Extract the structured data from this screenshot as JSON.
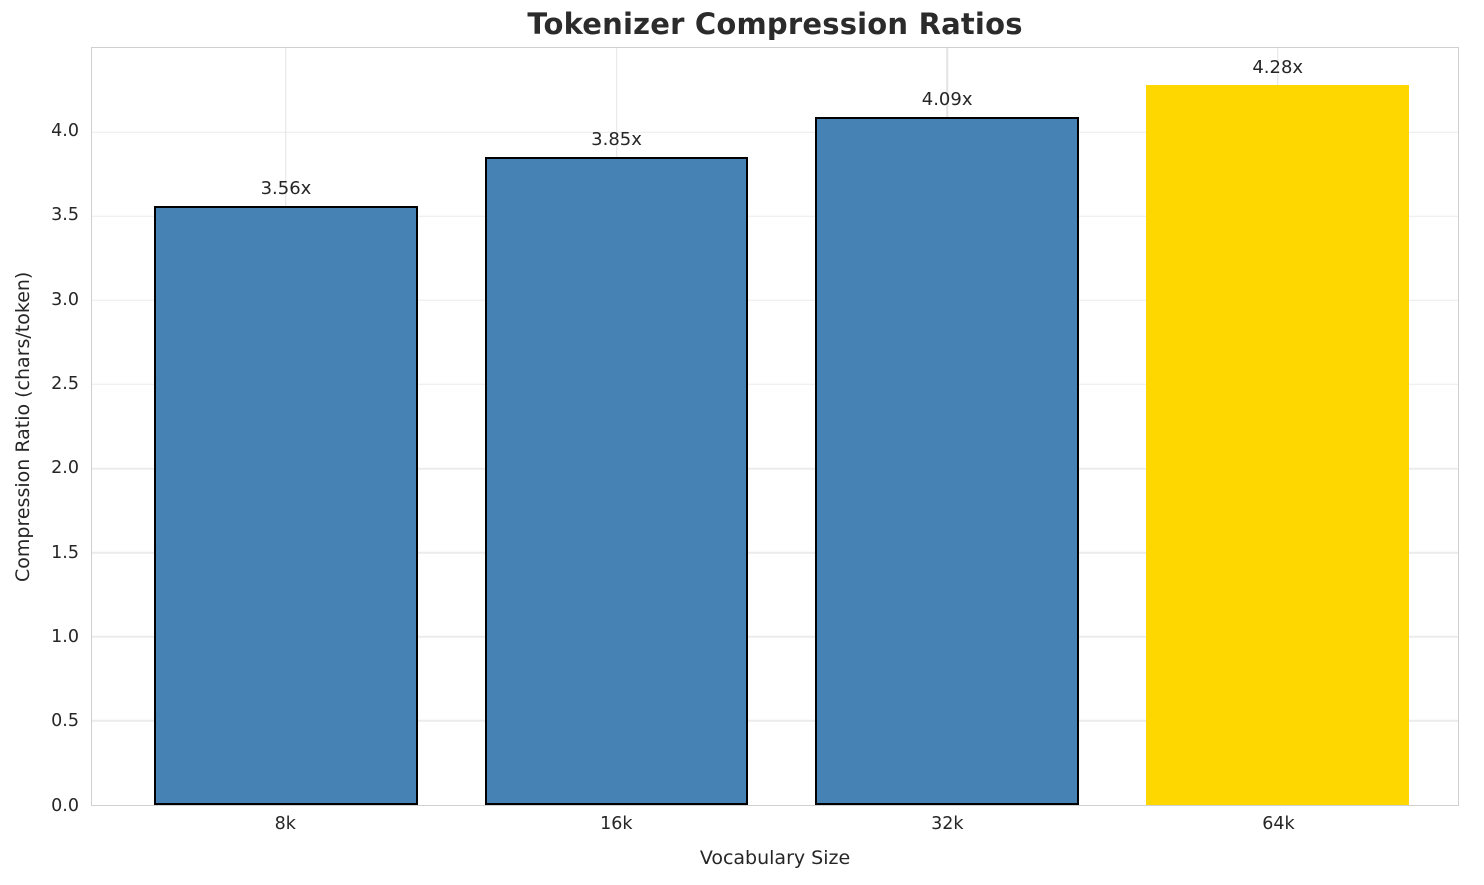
{
  "chart_data": {
    "type": "bar",
    "title": "Tokenizer Compression Ratios",
    "xlabel": "Vocabulary Size",
    "ylabel": "Compression Ratio (chars/token)",
    "categories": [
      "8k",
      "16k",
      "32k",
      "64k"
    ],
    "values": [
      3.56,
      3.85,
      4.09,
      4.28
    ],
    "bar_labels": [
      "3.56x",
      "3.85x",
      "4.09x",
      "4.28x"
    ],
    "ytick_labels": [
      "0.0",
      "0.5",
      "1.0",
      "1.5",
      "2.0",
      "2.5",
      "3.0",
      "3.5",
      "4.0"
    ],
    "yticks": [
      0.0,
      0.5,
      1.0,
      1.5,
      2.0,
      2.5,
      3.0,
      3.5,
      4.0
    ],
    "ylim": [
      0,
      4.5
    ],
    "grid": true,
    "legend": null,
    "highlight_index": 3,
    "colors": {
      "bar_default": "#4682b4",
      "bar_highlight": "#ffd700",
      "bar_edge": "#000000",
      "grid": "#ececec",
      "spine": "#d0d0d0",
      "text": "#262626",
      "title": "#2b2b2b"
    }
  }
}
